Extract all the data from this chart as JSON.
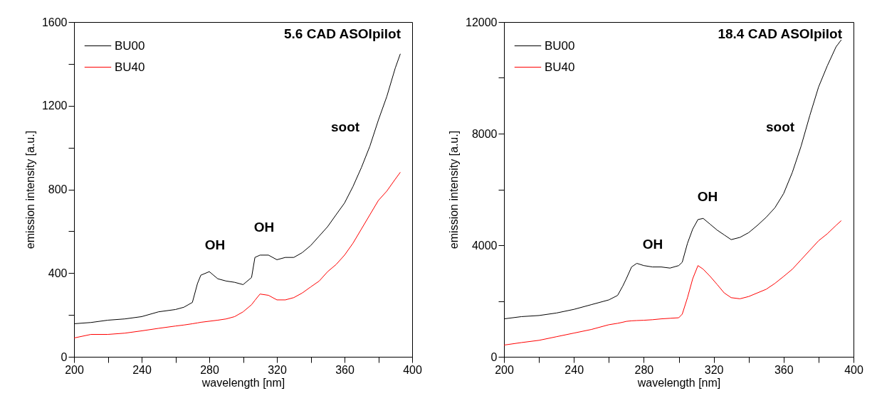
{
  "chart_data": [
    {
      "type": "line",
      "title": "5.6 CAD ASOIpilot",
      "xlabel": "wavelength [nm]",
      "ylabel": "emission  intensity [a.u.]",
      "x": [
        200,
        210,
        220,
        230,
        240,
        250,
        260,
        265,
        270,
        273,
        275,
        280,
        285,
        290,
        295,
        300,
        305,
        307,
        310,
        315,
        320,
        325,
        330,
        335,
        340,
        345,
        350,
        355,
        360,
        365,
        370,
        375,
        380,
        385,
        390,
        393
      ],
      "series": [
        {
          "name": "BU00",
          "color": "#000000",
          "values": [
            158,
            164,
            175,
            181,
            192,
            215,
            226,
            237,
            260,
            350,
            390,
            407,
            373,
            362,
            356,
            345,
            379,
            475,
            486,
            486,
            464,
            475,
            475,
            498,
            532,
            577,
            622,
            679,
            735,
            814,
            905,
            1007,
            1131,
            1244,
            1380,
            1448
          ]
        },
        {
          "name": "BU40",
          "color": "#ff0000",
          "values": [
            90,
            107,
            107,
            113,
            124,
            136,
            147,
            152,
            158,
            162,
            165,
            170,
            175,
            181,
            192,
            215,
            249,
            270,
            300,
            294,
            272,
            272,
            283,
            305,
            334,
            362,
            407,
            441,
            486,
            543,
            611,
            679,
            747,
            792,
            849,
            882
          ]
        }
      ],
      "annotations": [
        "OH",
        "OH",
        "soot"
      ],
      "xlim": [
        200,
        400
      ],
      "xticks": [
        200,
        {
          "value": 220,
          "label": null
        },
        240,
        {
          "value": 260,
          "label": null
        },
        280,
        {
          "value": 300,
          "label": null
        },
        320,
        {
          "value": 340,
          "label": null
        },
        360,
        {
          "value": 380,
          "label": null
        },
        400
      ],
      "ylim": [
        0,
        1600
      ],
      "yticks": [
        0,
        {
          "value": 200,
          "label": null
        },
        400,
        {
          "value": 600,
          "label": null
        },
        800,
        {
          "value": 1000,
          "label": null
        },
        1200,
        {
          "value": 1400,
          "label": null
        },
        1600
      ],
      "grid": false,
      "legend": "top left",
      "marker": "none",
      "line_style": "solid"
    },
    {
      "type": "line",
      "title": "18.4 CAD ASOIpilot",
      "xlabel": "wavelength [nm]",
      "ylabel": "emission  intensity [a.u.]",
      "x": [
        200,
        210,
        220,
        230,
        240,
        250,
        260,
        265,
        268,
        270,
        273,
        276,
        280,
        285,
        290,
        295,
        300,
        302,
        305,
        308,
        311,
        314,
        318,
        322,
        326,
        330,
        335,
        340,
        345,
        350,
        355,
        360,
        365,
        370,
        375,
        380,
        385,
        390,
        393
      ],
      "series": [
        {
          "name": "BU00",
          "color": "#000000",
          "values": [
            1360,
            1440,
            1480,
            1570,
            1700,
            1870,
            2040,
            2200,
            2540,
            2800,
            3220,
            3350,
            3270,
            3220,
            3220,
            3180,
            3270,
            3390,
            4070,
            4580,
            4920,
            4960,
            4750,
            4540,
            4370,
            4200,
            4280,
            4450,
            4710,
            5000,
            5340,
            5850,
            6610,
            7550,
            8650,
            9670,
            10430,
            11110,
            11360
          ]
        },
        {
          "name": "BU40",
          "color": "#ff0000",
          "values": [
            420,
            510,
            590,
            720,
            850,
            980,
            1150,
            1200,
            1240,
            1270,
            1290,
            1300,
            1310,
            1330,
            1360,
            1380,
            1400,
            1530,
            2120,
            2800,
            3270,
            3140,
            2880,
            2590,
            2290,
            2120,
            2080,
            2160,
            2290,
            2420,
            2630,
            2880,
            3140,
            3480,
            3820,
            4160,
            4410,
            4710,
            4880
          ]
        }
      ],
      "annotations": [
        "OH",
        "OH",
        "soot"
      ],
      "xlim": [
        200,
        400
      ],
      "xticks": [
        200,
        {
          "value": 220,
          "label": null
        },
        240,
        {
          "value": 260,
          "label": null
        },
        280,
        {
          "value": 300,
          "label": null
        },
        320,
        {
          "value": 340,
          "label": null
        },
        360,
        {
          "value": 380,
          "label": null
        },
        400
      ],
      "ylim": [
        0,
        12000
      ],
      "yticks": [
        0,
        {
          "value": 2000,
          "label": null
        },
        4000,
        {
          "value": 6000,
          "label": null
        },
        8000,
        {
          "value": 10000,
          "label": null
        },
        12000
      ],
      "grid": false,
      "legend": "top left",
      "marker": "none",
      "line_style": "solid"
    }
  ]
}
